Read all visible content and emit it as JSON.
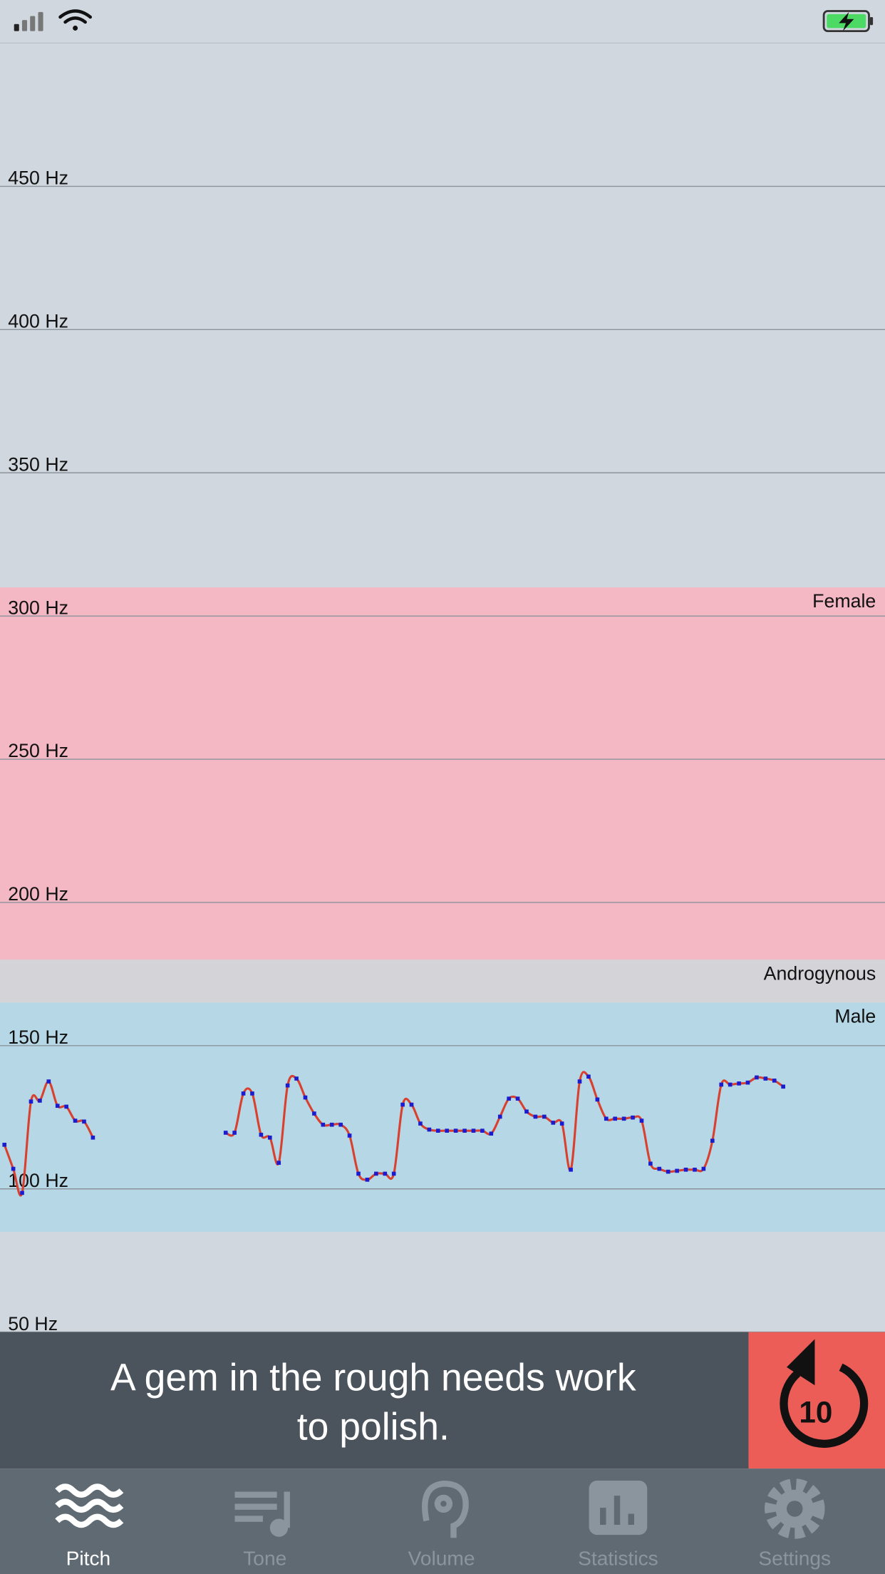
{
  "chart_data": {
    "type": "line",
    "ylim": [
      50,
      500
    ],
    "yticks": [
      {
        "value": 50,
        "label": "50 Hz"
      },
      {
        "value": 100,
        "label": "100 Hz"
      },
      {
        "value": 150,
        "label": "150 Hz"
      },
      {
        "value": 200,
        "label": "200 Hz"
      },
      {
        "value": 250,
        "label": "250 Hz"
      },
      {
        "value": 300,
        "label": "300 Hz"
      },
      {
        "value": 350,
        "label": "350 Hz"
      },
      {
        "value": 400,
        "label": "400 Hz"
      },
      {
        "value": 450,
        "label": "450 Hz"
      }
    ],
    "grid": true,
    "bands": [
      {
        "name": "Female",
        "from": 180,
        "to": 310,
        "color": "#f3b8c4"
      },
      {
        "name": "Androgynous",
        "from": 165,
        "to": 180,
        "color": "#d4d4d8"
      },
      {
        "name": "Male",
        "from": 85,
        "to": 165,
        "color": "#b6d7e5"
      }
    ],
    "series": [
      {
        "color": "#d8402f",
        "marker_color": "#1c1ccf",
        "values": [
          115.4,
          107,
          98.6,
          130.5,
          130.8,
          137.5,
          129,
          128.7,
          123.8,
          123.5,
          117.9,
          null,
          null,
          null,
          null,
          null,
          null,
          null,
          null,
          null,
          null,
          null,
          null,
          null,
          null,
          119.6,
          119.6,
          133.3,
          133.3,
          118.9,
          117.9,
          109.1,
          136.1,
          138.5,
          131.9,
          126.3,
          122.4,
          122.4,
          122.4,
          118.6,
          105.3,
          103.2,
          105.3,
          105.3,
          105.3,
          129.4,
          129.4,
          122.8,
          120.7,
          120.3,
          120.3,
          120.3,
          120.3,
          120.3,
          120.3,
          119.3,
          125.2,
          131.5,
          131.5,
          127,
          125.2,
          125.2,
          123.1,
          122.8,
          106.7,
          137.5,
          139.2,
          131.2,
          124.5,
          124.5,
          124.5,
          124.9,
          123.8,
          108.8,
          107,
          106,
          106.3,
          106.7,
          106.7,
          107,
          116.8,
          136.4,
          136.4,
          136.8,
          137.1,
          138.9,
          138.5,
          137.8,
          135.7
        ]
      }
    ]
  },
  "prompt": {
    "lines": [
      "A gem in the rough needs work",
      "to polish."
    ],
    "replay_seconds": "10"
  },
  "tabs": [
    {
      "label": "Pitch"
    },
    {
      "label": "Tone"
    },
    {
      "label": "Volume"
    },
    {
      "label": "Statistics"
    },
    {
      "label": "Settings"
    }
  ]
}
